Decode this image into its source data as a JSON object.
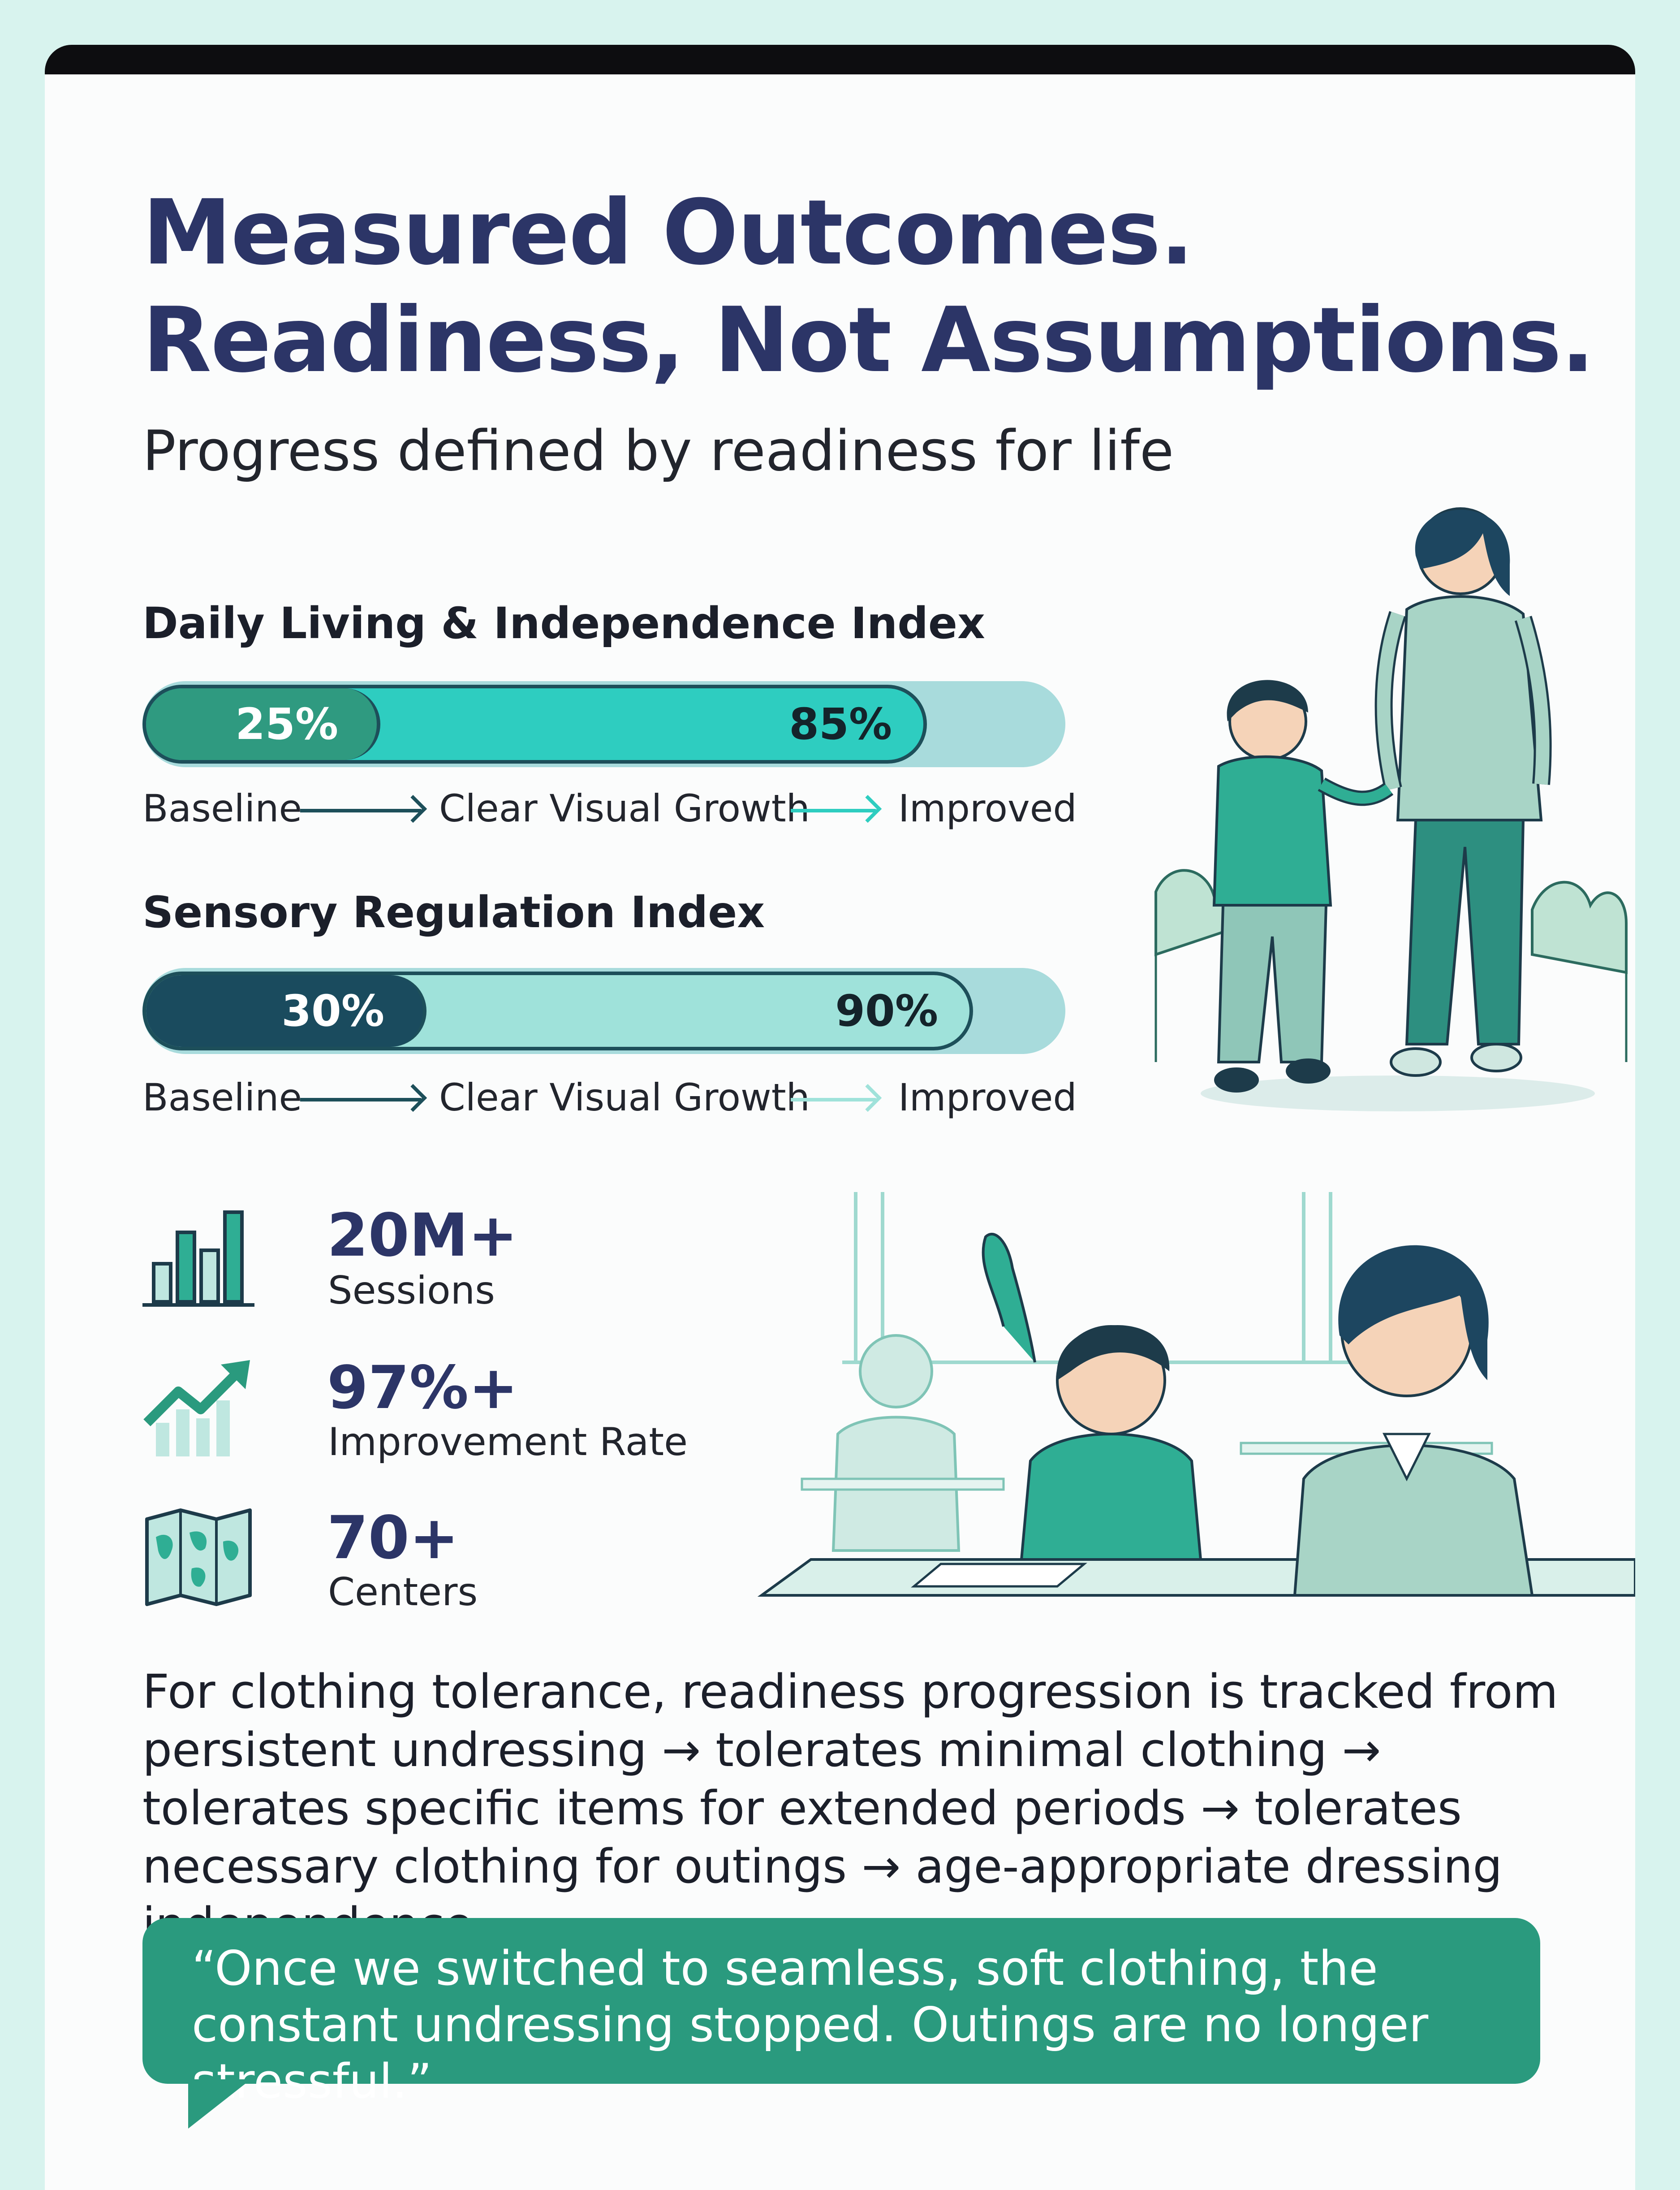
{
  "header": {
    "title_line1": "Measured Outcomes.",
    "title_line2": "Readiness, Not Assumptions.",
    "subtitle": "Progress defined by readiness for life"
  },
  "indices": [
    {
      "title": "Daily Living & Independence Index",
      "baseline": 0.25,
      "improved": 0.85,
      "baseline_label": "25%",
      "improved_label": "85%",
      "scale_start": "Baseline",
      "scale_mid": "Clear Visual Growth",
      "scale_end": "Improved",
      "baseline_color": "#2f9a80",
      "growth_color": "#2ecdc0"
    },
    {
      "title": "Sensory Regulation Index",
      "baseline": 0.3,
      "improved": 0.9,
      "baseline_label": "30%",
      "improved_label": "90%",
      "scale_start": "Baseline",
      "scale_mid": "Clear Visual Growth",
      "scale_end": "Improved",
      "baseline_color": "#1a4b5e",
      "growth_color": "#9fe2da"
    }
  ],
  "stats": [
    {
      "value": "20M+",
      "label": "Sessions",
      "icon": "bar-chart-icon"
    },
    {
      "value": "97%+",
      "label": "Improvement Rate",
      "icon": "trend-up-icon"
    },
    {
      "value": "70+",
      "label": "Centers",
      "icon": "map-icon"
    }
  ],
  "paragraph": "For clothing tolerance, readiness progression is tracked from persistent undressing → tolerates minimal clothing → tolerates specific items for extended periods → tolerates necessary clothing for outings → age-appropriate dressing independence.",
  "quote": "“Once we switched to seamless, soft clothing, the constant undressing stopped. Outings are no longer stressful.”",
  "colors": {
    "title": "#2c3567",
    "accent": "#2a9a7e",
    "background": "#d8f3ee"
  }
}
